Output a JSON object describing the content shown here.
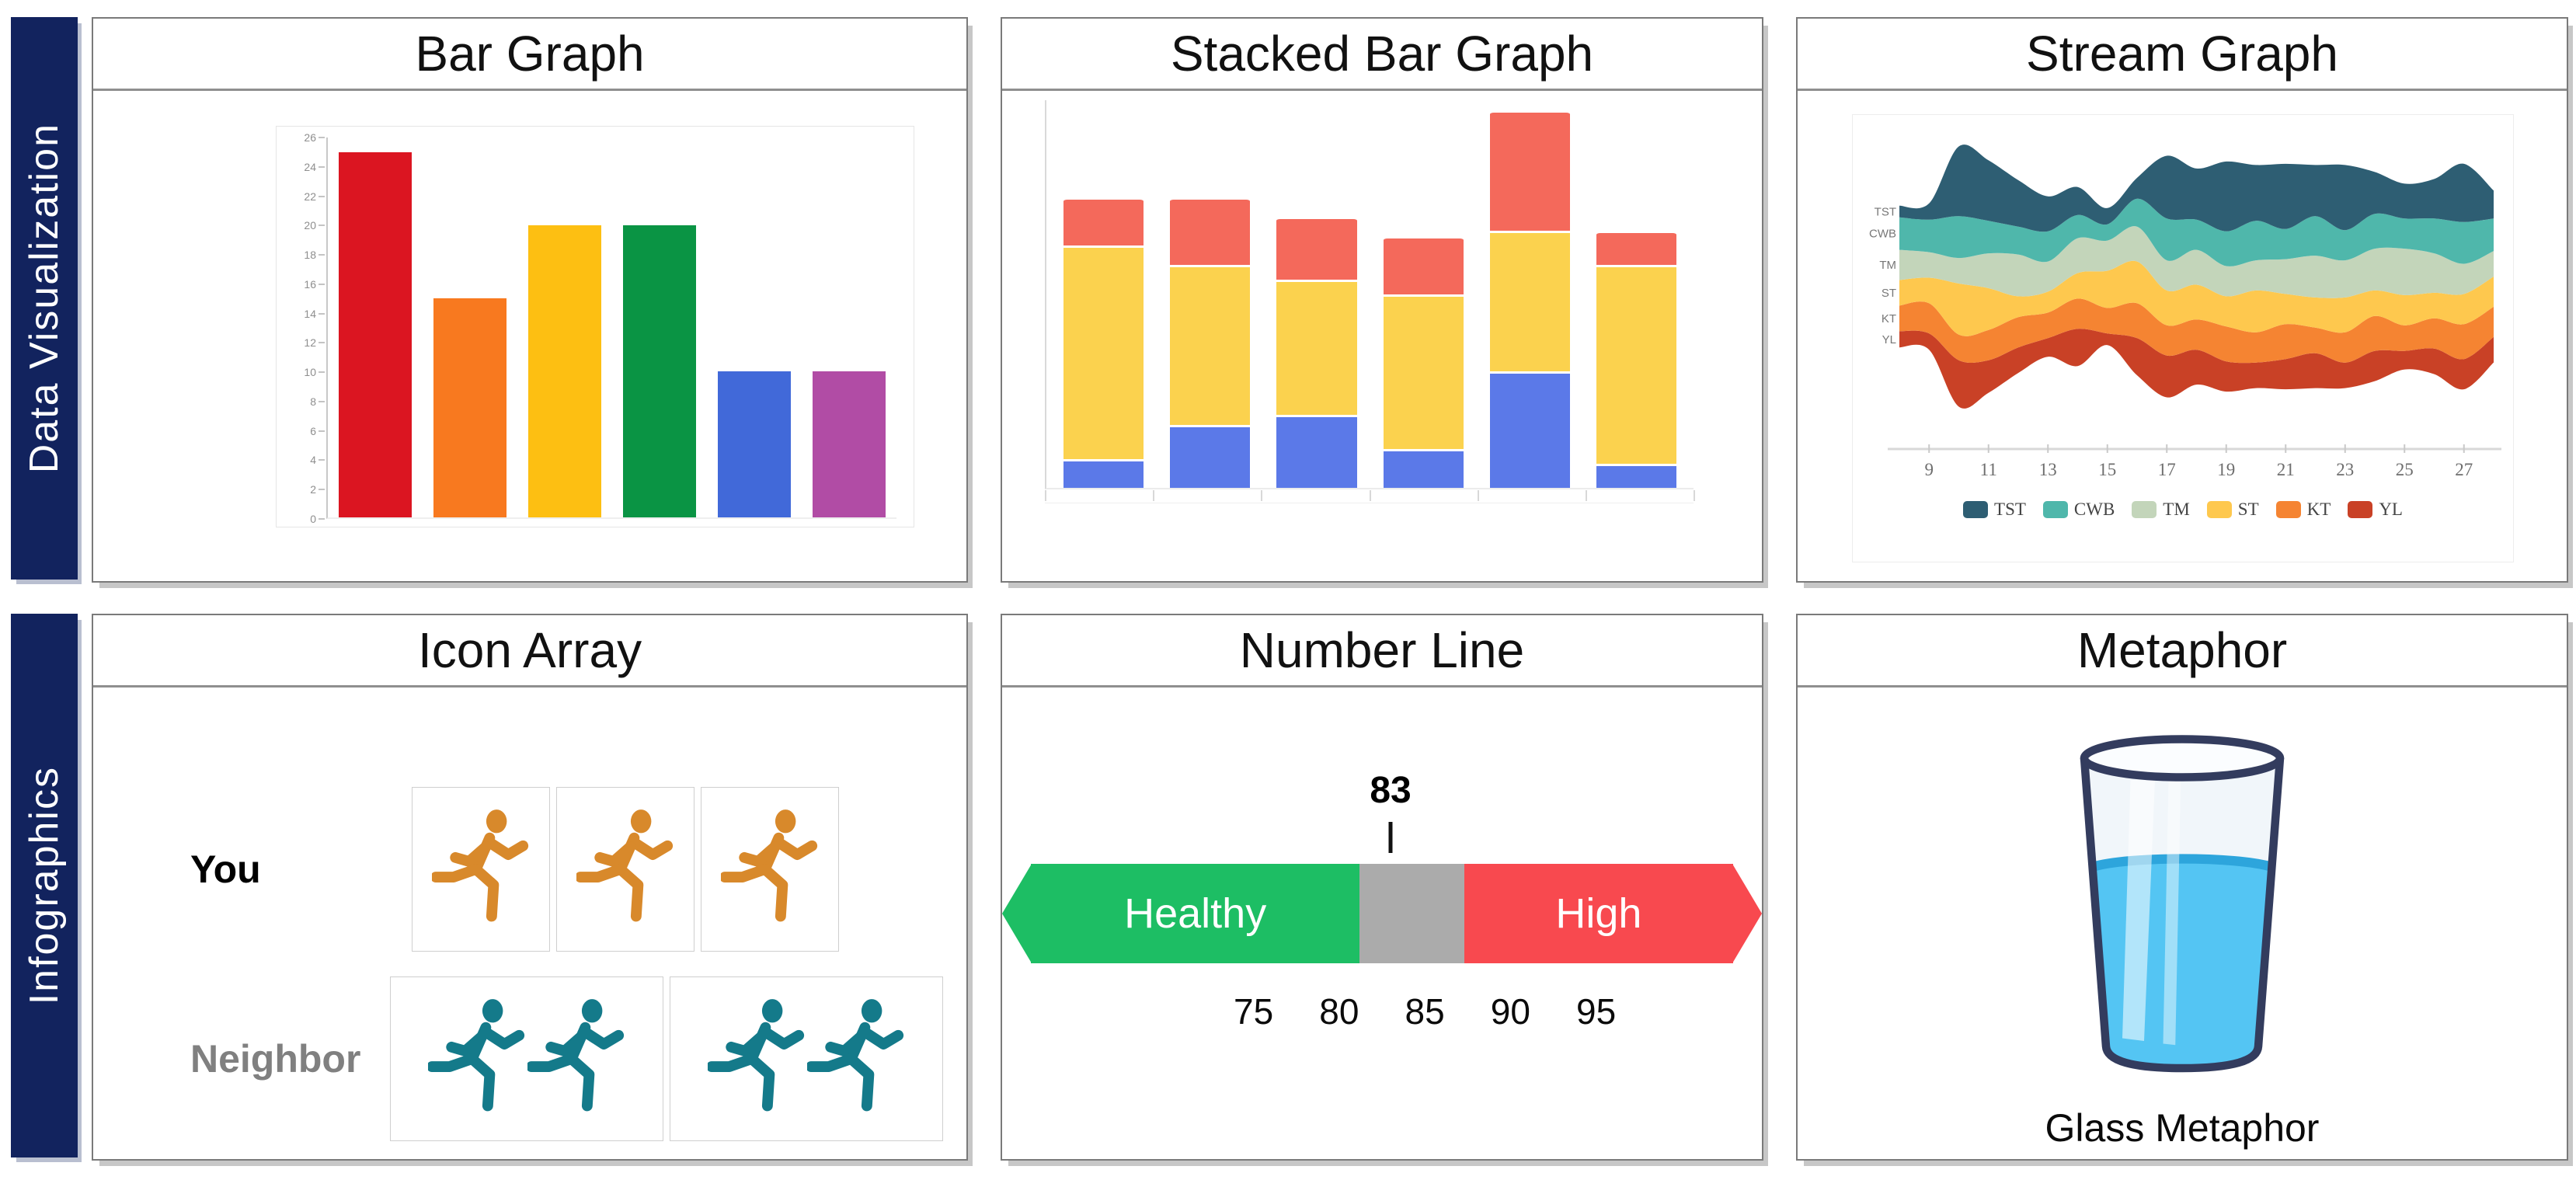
{
  "sidebar": {
    "color": "#12235E",
    "rows": [
      {
        "label": "Data Visualization"
      },
      {
        "label": "Infographics"
      }
    ]
  },
  "panels": {
    "bar_graph": {
      "title": "Bar Graph"
    },
    "stacked_bar_graph": {
      "title": "Stacked Bar Graph"
    },
    "stream_graph": {
      "title": "Stream Graph"
    },
    "icon_array": {
      "title": "Icon Array",
      "rows": [
        {
          "label": "You",
          "label_color": "#000000",
          "icon": "running-person-icon",
          "icon_color": "#D8892B",
          "count": 3,
          "boxes": [
            1,
            1,
            1
          ]
        },
        {
          "label": "Neighbor",
          "label_color": "#808080",
          "icon": "running-person-icon",
          "icon_color": "#147A8A",
          "count": 4,
          "boxes": [
            2,
            2
          ]
        }
      ]
    },
    "number_line": {
      "title": "Number Line",
      "axis_min": 61,
      "axis_max": 104,
      "marker": {
        "value": 83,
        "label": "83"
      },
      "segments": [
        {
          "label": "Healthy",
          "color": "#1DBE64",
          "from": 62,
          "to": 81.2,
          "tip": "left"
        },
        {
          "label": "",
          "color": "#ABABAB",
          "from": 81.2,
          "to": 87.3,
          "tip": null
        },
        {
          "label": "High",
          "color": "#F8494F",
          "from": 87.3,
          "to": 103,
          "tip": "right"
        }
      ],
      "ticks": [
        {
          "value": 75,
          "label": "75"
        },
        {
          "value": 80,
          "label": "80"
        },
        {
          "value": 85,
          "label": "85"
        },
        {
          "value": 90,
          "label": "90"
        },
        {
          "value": 95,
          "label": "95"
        }
      ]
    },
    "metaphor": {
      "title": "Metaphor",
      "caption": "Glass Metaphor",
      "water_color": "#54C5F3",
      "water_edge_color": "#2DA5DC",
      "glass_outline_color": "#333C5E",
      "fill_percent": 63
    }
  },
  "chart_data": [
    {
      "type": "bar",
      "title": "Bar Graph",
      "values": [
        25,
        15,
        20,
        20,
        10,
        10
      ],
      "colors": [
        "#DB1521",
        "#F8791F",
        "#FDBF12",
        "#0A9444",
        "#4169D9",
        "#B14CA5"
      ],
      "ylim": [
        0,
        26
      ],
      "ytick_step": 2,
      "grid": false,
      "legend": "none"
    },
    {
      "type": "bar",
      "subtype": "stacked",
      "title": "Stacked Bar Graph",
      "series": [
        {
          "name": "bottom-blue",
          "color": "#5B79E8",
          "values": [
            6,
            13,
            15,
            8,
            24,
            5
          ]
        },
        {
          "name": "middle-yellow",
          "color": "#FBD24E",
          "values": [
            44,
            33,
            28,
            32,
            29,
            41
          ]
        },
        {
          "name": "top-red",
          "color": "#F4695B",
          "values": [
            10,
            14,
            13,
            12,
            25,
            7
          ]
        }
      ],
      "ylim": [
        0,
        80
      ],
      "grid": false,
      "legend": "none"
    },
    {
      "type": "area",
      "subtype": "stream",
      "title": "Stream Graph",
      "x": [
        8,
        9,
        10,
        11,
        12,
        13,
        14,
        15,
        16,
        17,
        18,
        19,
        20,
        21,
        22,
        23,
        24,
        25,
        26,
        27,
        28
      ],
      "x_ticks": [
        9,
        11,
        13,
        15,
        17,
        19,
        21,
        23,
        25,
        27
      ],
      "legend_position": "bottom",
      "series": [
        {
          "name": "TST",
          "color": "#2E5E73",
          "values": [
            5,
            7,
            30,
            26,
            20,
            15,
            12,
            7,
            9,
            27,
            22,
            30,
            24,
            28,
            22,
            28,
            18,
            15,
            17,
            25,
            12
          ]
        },
        {
          "name": "CWB",
          "color": "#4FB7AB",
          "values": [
            14,
            14,
            18,
            14,
            12,
            13,
            10,
            7,
            12,
            18,
            13,
            15,
            17,
            13,
            17,
            13,
            15,
            13,
            15,
            18,
            14
          ]
        },
        {
          "name": "TM",
          "color": "#C3D5BA",
          "values": [
            13,
            11,
            11,
            15,
            18,
            13,
            15,
            13,
            15,
            13,
            15,
            13,
            13,
            15,
            18,
            16,
            18,
            20,
            17,
            13,
            11
          ]
        },
        {
          "name": "ST",
          "color": "#FEC84E",
          "values": [
            11,
            11,
            22,
            18,
            9,
            9,
            11,
            16,
            18,
            15,
            15,
            13,
            18,
            13,
            13,
            15,
            11,
            13,
            11,
            13,
            13
          ]
        },
        {
          "name": "KT",
          "color": "#F58432",
          "values": [
            11,
            13,
            11,
            13,
            13,
            11,
            13,
            11,
            15,
            13,
            13,
            15,
            13,
            15,
            11,
            13,
            15,
            11,
            13,
            15,
            13
          ]
        },
        {
          "name": "YL",
          "color": "#C94126",
          "values": [
            7,
            7,
            20,
            14,
            11,
            8,
            16,
            5,
            16,
            18,
            15,
            13,
            11,
            13,
            15,
            11,
            13,
            8,
            11,
            13,
            11
          ]
        }
      ]
    }
  ]
}
